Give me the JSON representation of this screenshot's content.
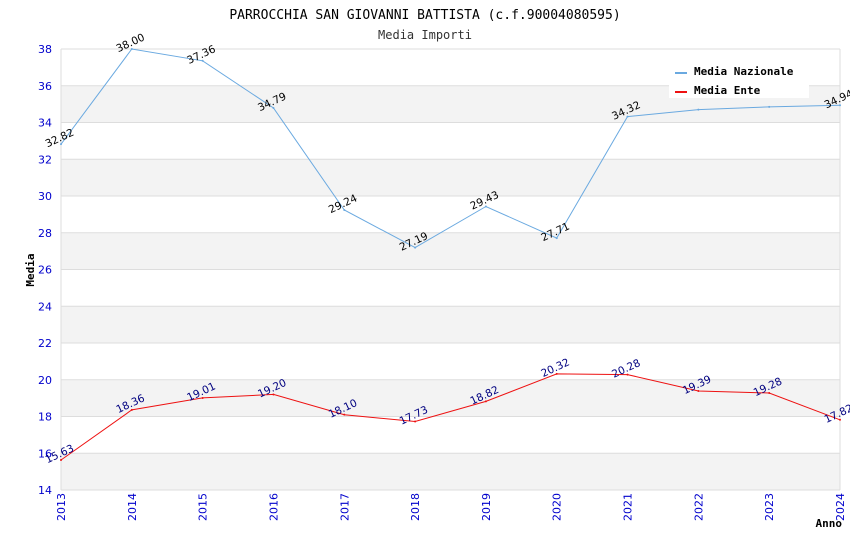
{
  "chart_data": {
    "type": "line",
    "title": "PARROCCHIA SAN GIOVANNI BATTISTA (c.f.90004080595)",
    "subtitle": "Media Importi",
    "xlabel": "Anno",
    "ylabel": "Media",
    "ylim": [
      14,
      38
    ],
    "yticks": [
      "14",
      "16",
      "18",
      "20",
      "22",
      "24",
      "26",
      "28",
      "30",
      "32",
      "34",
      "36",
      "38"
    ],
    "categories": [
      "2013",
      "2014",
      "2015",
      "2016",
      "2017",
      "2018",
      "2019",
      "2020",
      "2021",
      "2022",
      "2023",
      "2024"
    ],
    "legend_position": "top-right",
    "series": [
      {
        "name": "Media Nazionale",
        "color": "#6aa9e0",
        "values": [
          32.82,
          38.0,
          37.36,
          34.79,
          29.24,
          27.19,
          29.43,
          27.71,
          34.32,
          34.7,
          34.85,
          34.94
        ],
        "labels": [
          "32.82",
          "38.00",
          "37.36",
          "34.79",
          "29.24",
          "27.19",
          "29.43",
          "27.71",
          "34.32",
          "",
          "",
          "34.94"
        ]
      },
      {
        "name": "Media Ente",
        "color": "#ee1111",
        "values": [
          15.63,
          18.36,
          19.01,
          19.2,
          18.1,
          17.73,
          18.82,
          20.32,
          20.28,
          19.39,
          19.28,
          17.82
        ],
        "labels": [
          "15.63",
          "18.36",
          "19.01",
          "19.20",
          "18.10",
          "17.73",
          "18.82",
          "20.32",
          "20.28",
          "19.39",
          "19.28",
          "17.82"
        ]
      }
    ]
  }
}
